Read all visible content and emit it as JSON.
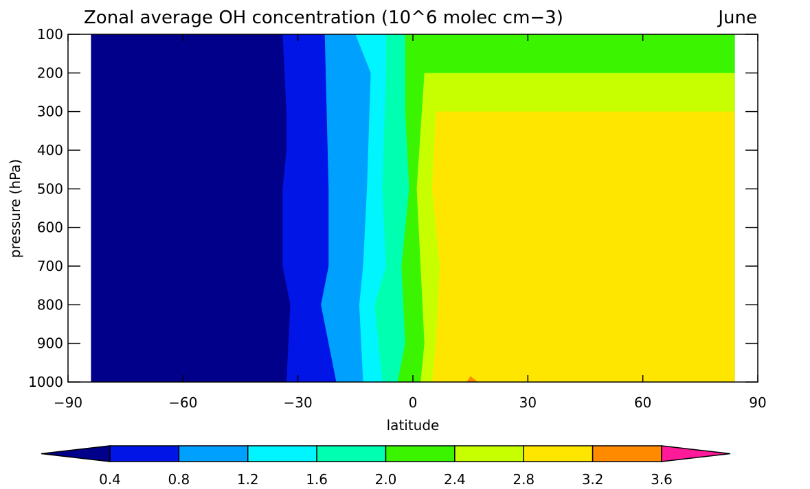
{
  "chart_data": {
    "type": "heatmap",
    "subtype": "filled-contour",
    "title": "Zonal average OH concentration (10^6 molec cm−3)",
    "month": "June",
    "xlabel": "latitude",
    "ylabel": "pressure (hPa)",
    "xlim": [
      -90,
      90
    ],
    "ylim": [
      1000,
      100
    ],
    "x_ticks": [
      "−90",
      "−60",
      "−30",
      "0",
      "30",
      "60",
      "90"
    ],
    "y_ticks": [
      "100",
      "200",
      "300",
      "400",
      "500",
      "600",
      "700",
      "800",
      "900",
      "1000"
    ],
    "data_extent_lat": [
      -84,
      84
    ],
    "levels": [
      0.4,
      0.8,
      1.2,
      1.6,
      2.0,
      2.4,
      2.8,
      3.2,
      3.6
    ],
    "level_labels": [
      "0.4",
      "0.8",
      "1.2",
      "1.6",
      "2.0",
      "2.4",
      "2.8",
      "3.2",
      "3.6"
    ],
    "colors": [
      "#00008a",
      "#0015e6",
      "#00a0ff",
      "#00f5ff",
      "#00ffb0",
      "#3bf500",
      "#c8ff00",
      "#ffe600",
      "#ff8a00",
      "#ff1a9a"
    ],
    "colorbar": {
      "position": "bottom",
      "extend": "both"
    },
    "contours": [
      {
        "level": 0.8,
        "boundary": [
          [
            -34,
            100
          ],
          [
            -33,
            300
          ],
          [
            -33,
            400
          ],
          [
            -34,
            500
          ],
          [
            -34,
            700
          ],
          [
            -32,
            800
          ],
          [
            -33,
            1000
          ]
        ]
      },
      {
        "level": 1.2,
        "boundary": [
          [
            -23,
            100
          ],
          [
            -22,
            500
          ],
          [
            -22,
            700
          ],
          [
            -24,
            800
          ],
          [
            -20,
            1000
          ]
        ]
      },
      {
        "level": 1.6,
        "boundary": [
          [
            -15,
            100
          ],
          [
            -11,
            200
          ],
          [
            -12,
            500
          ],
          [
            -13,
            700
          ],
          [
            -14,
            800
          ],
          [
            -13,
            1000
          ]
        ]
      },
      {
        "level": 2.0,
        "boundary": [
          [
            -7,
            100
          ],
          [
            -7,
            200
          ],
          [
            -8,
            500
          ],
          [
            -7,
            700
          ],
          [
            -10,
            800
          ],
          [
            -8,
            1000
          ]
        ]
      },
      {
        "level": 2.4,
        "boundary": [
          [
            -2,
            100
          ],
          [
            -2,
            300
          ],
          [
            -1,
            500
          ],
          [
            -3,
            700
          ],
          [
            -2,
            900
          ],
          [
            -4,
            1000
          ]
        ]
      },
      {
        "level": 2.8,
        "boundary": [
          [
            3,
            200
          ],
          [
            1,
            500
          ],
          [
            2,
            700
          ],
          [
            3,
            900
          ],
          [
            2,
            1000
          ]
        ]
      },
      {
        "level": 3.2,
        "boundary": [
          [
            6,
            300
          ],
          [
            5,
            500
          ],
          [
            7,
            700
          ],
          [
            6,
            900
          ],
          [
            5,
            1000
          ]
        ]
      },
      {
        "level": 3.6,
        "boundary": [
          [
            14,
            1000
          ],
          [
            15,
            985
          ],
          [
            17,
            1000
          ]
        ]
      }
    ]
  }
}
